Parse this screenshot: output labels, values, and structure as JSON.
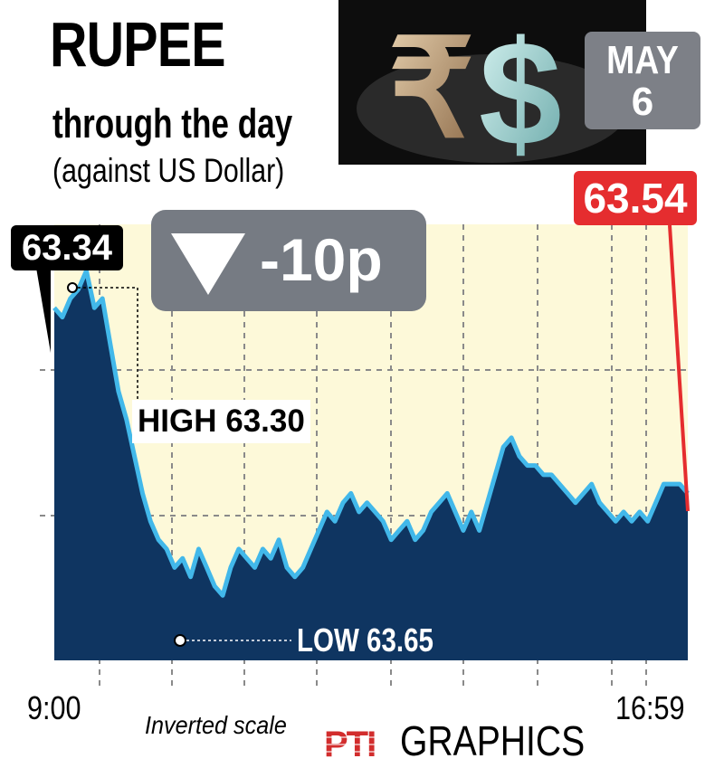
{
  "header": {
    "title": "RUPEE",
    "subtitle": "through the day",
    "subtitle2": "(against US Dollar)"
  },
  "date": {
    "month": "MAY",
    "day": "6"
  },
  "callouts": {
    "open": "63.34",
    "close": "63.54",
    "change": "-10p",
    "high": "HIGH 63.30",
    "low": "LOW 63.65"
  },
  "footer": {
    "note": "Inverted scale",
    "source": "GRAPHICS",
    "source_logo": "PTI"
  },
  "colors": {
    "fill": "#0f3561",
    "line": "#42b8ea",
    "background": "#fdf9d9",
    "close_box": "#e52d2f",
    "change_box": "#767b83"
  },
  "chart_data": {
    "type": "area",
    "inverted_y": true,
    "x_tick_labels": [
      "9:00",
      "16:59"
    ],
    "x_range": [
      "9:00",
      "16:59"
    ],
    "ylim": [
      63.72,
      63.25
    ],
    "grid": true,
    "values": [
      63.34,
      63.35,
      63.33,
      63.32,
      63.3,
      63.34,
      63.33,
      63.38,
      63.43,
      63.46,
      63.5,
      63.54,
      63.57,
      63.59,
      63.6,
      63.62,
      63.61,
      63.63,
      63.6,
      63.62,
      63.64,
      63.65,
      63.62,
      63.6,
      63.61,
      63.62,
      63.6,
      63.61,
      63.59,
      63.62,
      63.63,
      63.62,
      63.6,
      63.58,
      63.56,
      63.57,
      63.55,
      63.54,
      63.56,
      63.55,
      63.56,
      63.57,
      63.59,
      63.58,
      63.57,
      63.59,
      63.58,
      63.56,
      63.55,
      63.54,
      63.56,
      63.58,
      63.56,
      63.58,
      63.55,
      63.52,
      63.49,
      63.48,
      63.5,
      63.51,
      63.51,
      63.52,
      63.52,
      63.53,
      63.54,
      63.55,
      63.54,
      63.53,
      63.55,
      63.56,
      63.57,
      63.56,
      63.57,
      63.56,
      63.57,
      63.55,
      63.53,
      63.53,
      63.53,
      63.54
    ],
    "annotations": [
      {
        "label": "HIGH 63.30",
        "value": 63.3
      },
      {
        "label": "LOW 63.65",
        "value": 63.65
      }
    ]
  }
}
